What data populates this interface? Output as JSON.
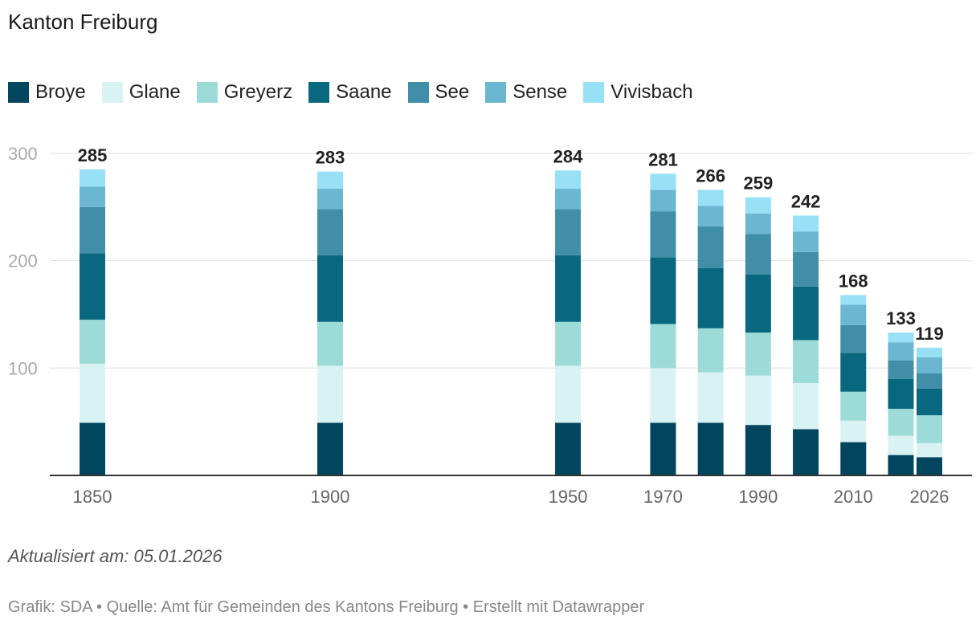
{
  "title": "Kanton Freiburg",
  "updated": "Aktualisiert am: 05.01.2026",
  "footer": "Grafik: SDA • Quelle: Amt für Gemeinden des Kantons Freiburg • Erstellt mit Datawrapper",
  "colors": {
    "Broye": "#02455e",
    "Glane": "#d9f3f5",
    "Greyerz": "#9ddbd8",
    "Saane": "#09687f",
    "See": "#418ea8",
    "Sense": "#6bb6d0",
    "Vivisbach": "#97e0f6"
  },
  "chart_data": {
    "type": "bar",
    "stacked": true,
    "title": "Kanton Freiburg",
    "categories": [
      "1850",
      "1900",
      "1950",
      "1970",
      "1980",
      "1990",
      "2000",
      "2010",
      "2020",
      "2026"
    ],
    "x_values": [
      1850,
      1900,
      1950,
      1970,
      1980,
      1990,
      2000,
      2010,
      2020,
      2026
    ],
    "x_tick_labels": [
      "1850",
      "1900",
      "1950",
      "1970",
      "1990",
      "2010",
      "2026"
    ],
    "y_ticks": [
      100,
      200,
      300
    ],
    "ylim": [
      0,
      300
    ],
    "totals": [
      285,
      283,
      284,
      281,
      266,
      259,
      242,
      168,
      133,
      119
    ],
    "series": [
      {
        "name": "Broye",
        "values": [
          49,
          49,
          49,
          49,
          49,
          47,
          43,
          31,
          19,
          17
        ]
      },
      {
        "name": "Glane",
        "values": [
          55,
          53,
          53,
          51,
          47,
          46,
          43,
          20,
          18,
          13
        ]
      },
      {
        "name": "Greyerz",
        "values": [
          41,
          41,
          41,
          41,
          41,
          40,
          40,
          27,
          25,
          26
        ]
      },
      {
        "name": "Saane",
        "values": [
          62,
          62,
          62,
          62,
          56,
          54,
          50,
          36,
          28,
          25
        ]
      },
      {
        "name": "See",
        "values": [
          43,
          43,
          43,
          43,
          39,
          38,
          32,
          26,
          17,
          14
        ]
      },
      {
        "name": "Sense",
        "values": [
          19,
          19,
          19,
          20,
          19,
          19,
          19,
          19,
          17,
          15
        ]
      },
      {
        "name": "Vivisbach",
        "values": [
          16,
          16,
          17,
          15,
          15,
          15,
          15,
          9,
          9,
          9
        ]
      }
    ]
  }
}
